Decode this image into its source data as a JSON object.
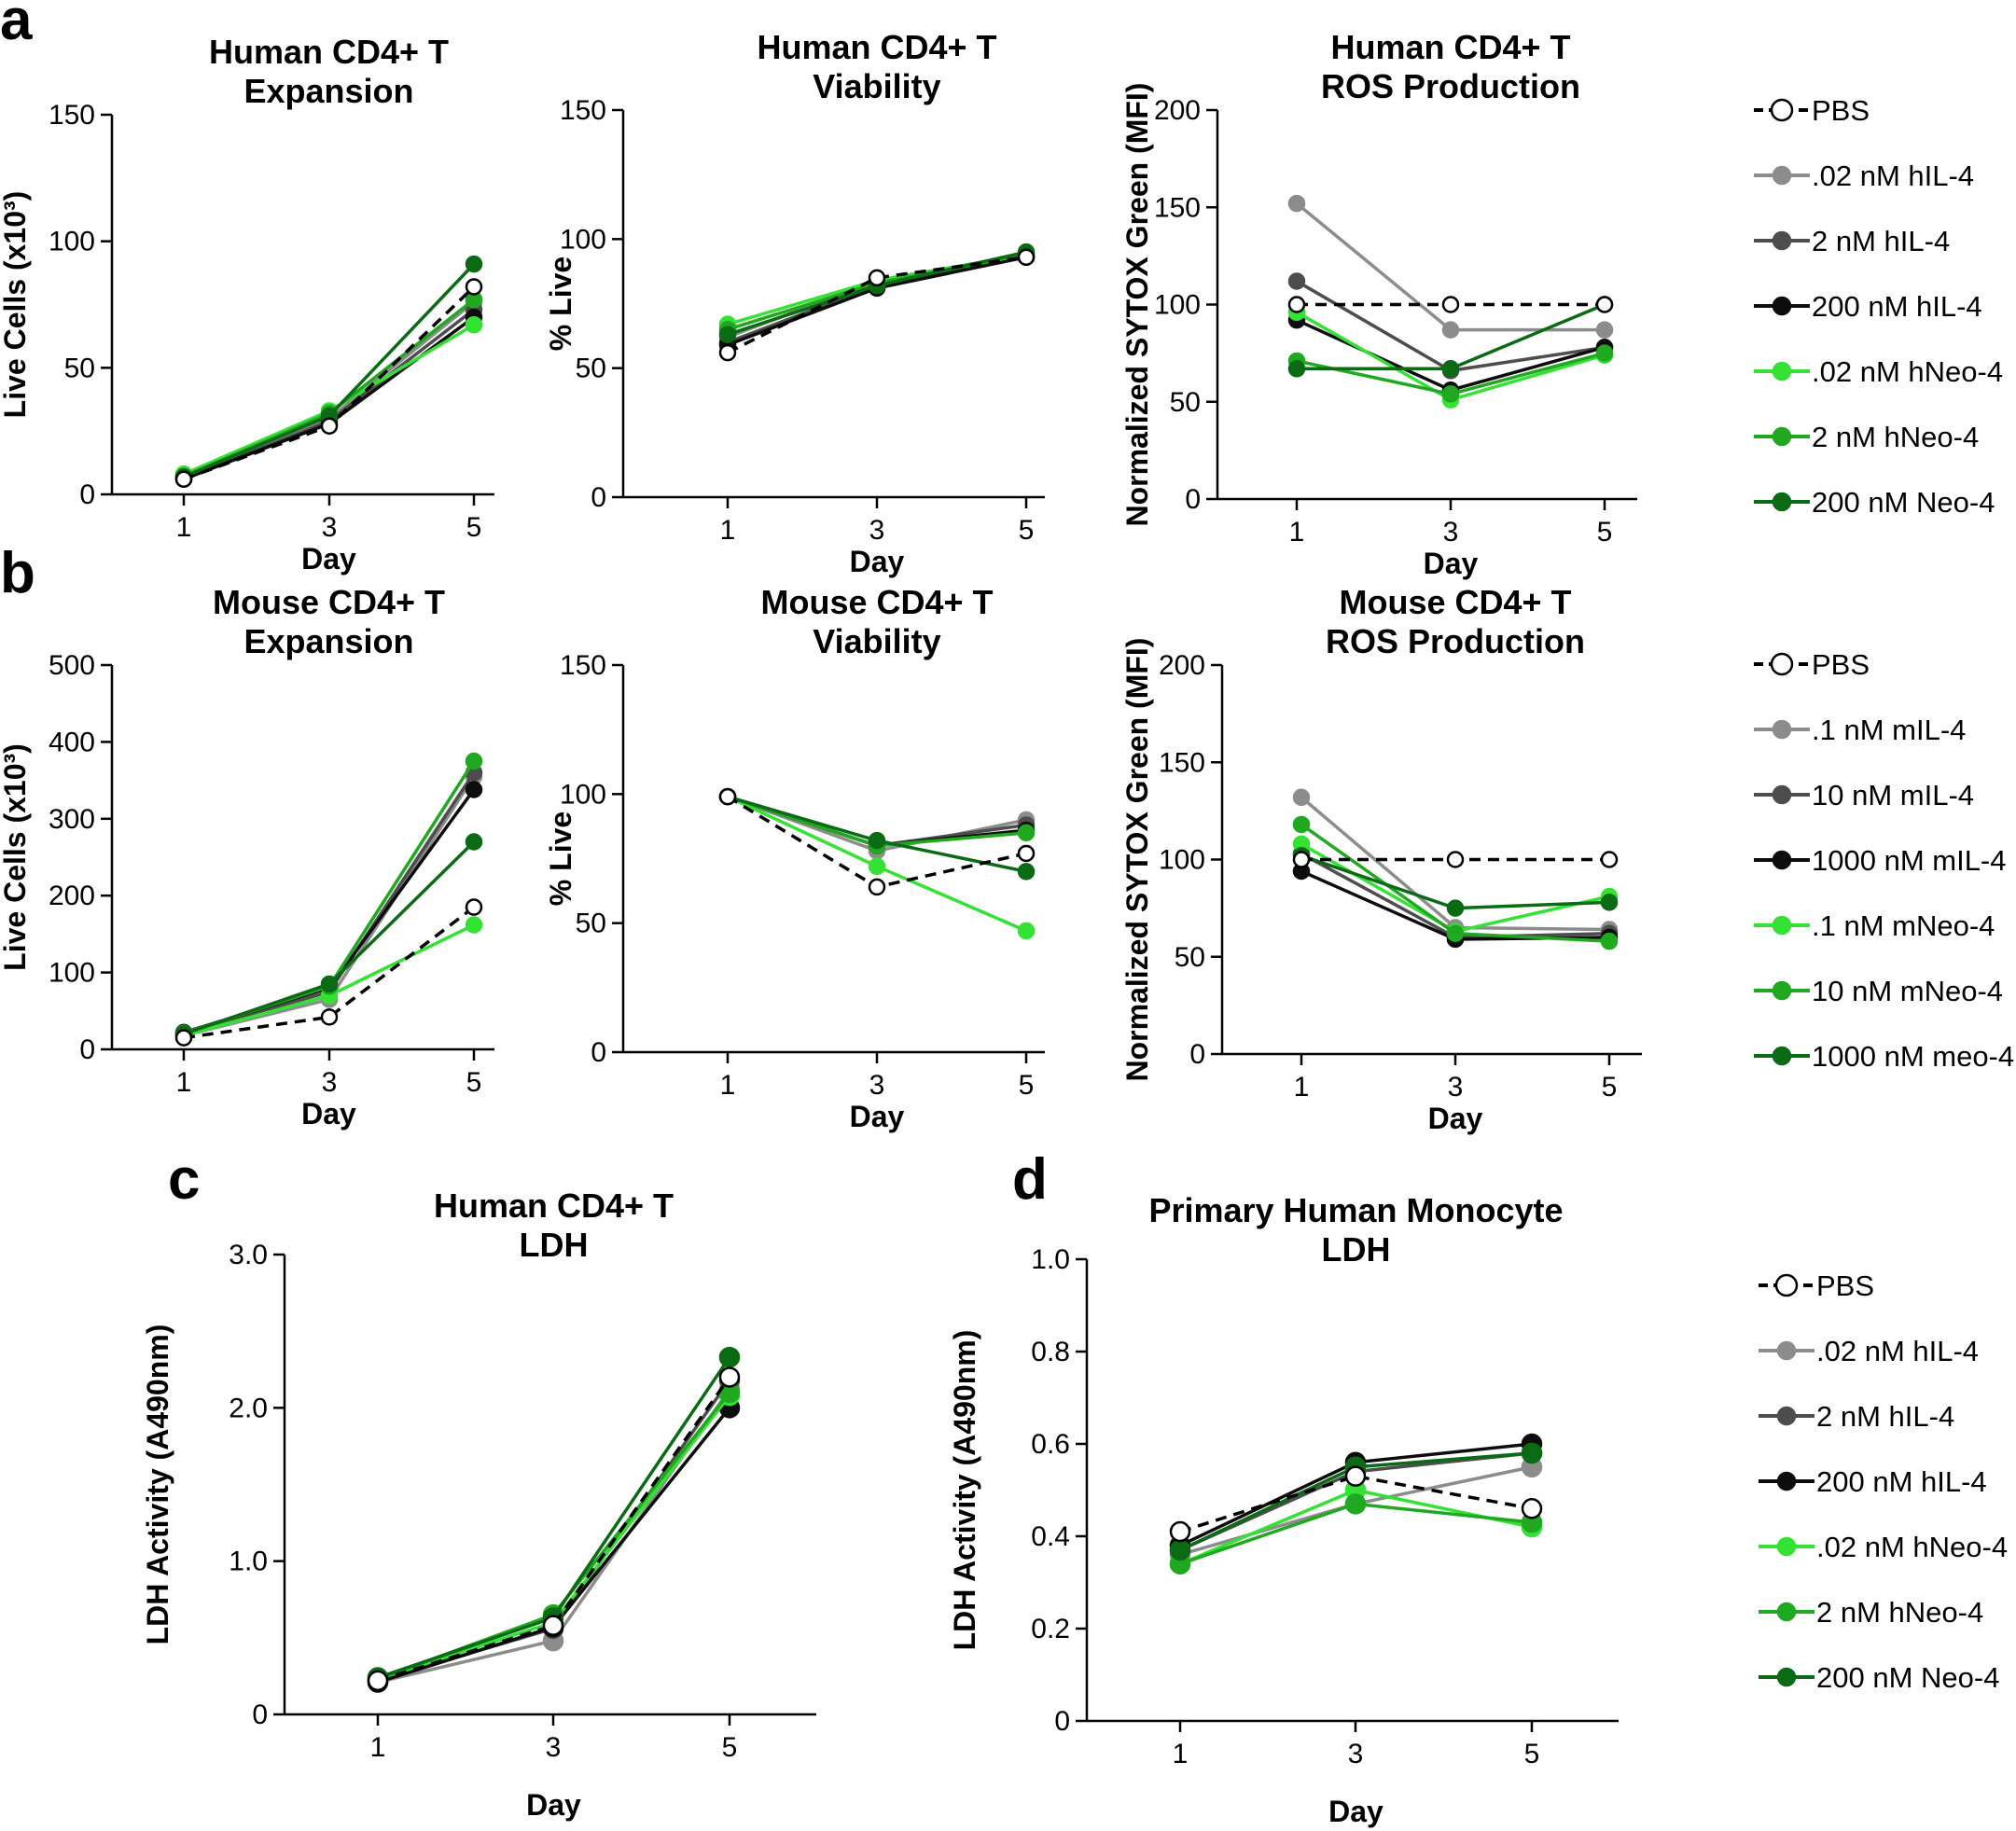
{
  "colors": {
    "pbs": "#000000",
    "low_il4": "#8c8c8c",
    "mid_il4": "#4d4d4d",
    "high_il4": "#0d0d0d",
    "low_neo4": "#33e233",
    "mid_neo4": "#20a820",
    "high_neo4": "#0b6b14"
  },
  "panel_labels": {
    "a": "a",
    "b": "b",
    "c": "c",
    "d": "d"
  },
  "legends": {
    "a": [
      ".02 nM hIL-4",
      "2 nM hIL-4",
      "200 nM hIL-4",
      ".02 nM hNeo-4",
      "2 nM hNeo-4",
      "200 nM Neo-4"
    ],
    "b": [
      ".1 nM mIL-4",
      "10 nM mIL-4",
      "1000 nM mIL-4",
      ".1 nM mNeo-4",
      "10 nM mNeo-4",
      "1000 nM meo-4"
    ],
    "d": [
      ".02 nM hIL-4",
      "2 nM hIL-4",
      "200 nM hIL-4",
      ".02 nM hNeo-4",
      "2 nM hNeo-4",
      "200 nM Neo-4"
    ],
    "pbs_label": "PBS"
  },
  "chart_data": [
    {
      "id": "a1",
      "type": "line",
      "title": [
        "Human CD4+ T",
        "Expansion"
      ],
      "xlabel": "Day",
      "ylabel": "Live Cells (x10³)",
      "categories": [
        "1",
        "3",
        "5"
      ],
      "ylim": [
        0,
        150
      ],
      "yticks": [
        "0",
        "50",
        "100",
        "150"
      ],
      "series": [
        {
          "name": "PBS",
          "values": [
            6,
            27,
            82
          ]
        },
        {
          "name": ".02 nM hIL-4",
          "values": [
            7,
            30,
            76
          ]
        },
        {
          "name": "2 nM hIL-4",
          "values": [
            6,
            29,
            73
          ]
        },
        {
          "name": "200 nM hIL-4",
          "values": [
            6,
            28,
            70
          ]
        },
        {
          "name": ".02 nM hNeo-4",
          "values": [
            8,
            33,
            67
          ]
        },
        {
          "name": "2 nM hNeo-4",
          "values": [
            7,
            32,
            77
          ]
        },
        {
          "name": "200 nM Neo-4",
          "values": [
            7,
            31,
            91
          ]
        }
      ]
    },
    {
      "id": "a2",
      "type": "line",
      "title": [
        "Human CD4+ T",
        "Viability"
      ],
      "xlabel": "Day",
      "ylabel": "% Live",
      "categories": [
        "1",
        "3",
        "5"
      ],
      "ylim": [
        0,
        150
      ],
      "yticks": [
        "0",
        "50",
        "100",
        "150"
      ],
      "series": [
        {
          "name": "PBS",
          "values": [
            56,
            85,
            93
          ]
        },
        {
          "name": ".02 nM hIL-4",
          "values": [
            62,
            84,
            94
          ]
        },
        {
          "name": "2 nM hIL-4",
          "values": [
            60,
            82,
            93
          ]
        },
        {
          "name": "200 nM hIL-4",
          "values": [
            59,
            81,
            93
          ]
        },
        {
          "name": ".02 nM hNeo-4",
          "values": [
            67,
            84,
            94
          ]
        },
        {
          "name": "2 nM hNeo-4",
          "values": [
            65,
            83,
            94
          ]
        },
        {
          "name": "200 nM Neo-4",
          "values": [
            63,
            82,
            95
          ]
        }
      ]
    },
    {
      "id": "a3",
      "type": "line",
      "title": [
        "Human CD4+ T",
        "ROS Production"
      ],
      "xlabel": "Day",
      "ylabel": "Normalized  SYTOX Green (MFI)",
      "categories": [
        "1",
        "3",
        "5"
      ],
      "ylim": [
        0,
        200
      ],
      "yticks": [
        "0",
        "50",
        "100",
        "150",
        "200"
      ],
      "series": [
        {
          "name": "PBS",
          "values": [
            100,
            100,
            100
          ]
        },
        {
          "name": ".02 nM hIL-4",
          "values": [
            152,
            87,
            87
          ]
        },
        {
          "name": "2 nM hIL-4",
          "values": [
            112,
            66,
            78
          ]
        },
        {
          "name": "200 nM hIL-4",
          "values": [
            92,
            56,
            78
          ]
        },
        {
          "name": ".02 nM hNeo-4",
          "values": [
            96,
            51,
            74
          ]
        },
        {
          "name": "2 nM hNeo-4",
          "values": [
            71,
            54,
            75
          ]
        },
        {
          "name": "200 nM Neo-4",
          "values": [
            67,
            67,
            100
          ]
        }
      ]
    },
    {
      "id": "b1",
      "type": "line",
      "title": [
        "Mouse CD4+ T",
        "Expansion"
      ],
      "xlabel": "Day",
      "ylabel": "Live Cells (x10³)",
      "categories": [
        "1",
        "3",
        "5"
      ],
      "ylim": [
        0,
        500
      ],
      "yticks": [
        "0",
        "100",
        "200",
        "300",
        "400",
        "500"
      ],
      "series": [
        {
          "name": "PBS",
          "values": [
            15,
            42,
            185
          ]
        },
        {
          "name": ".1 nM mIL-4",
          "values": [
            18,
            65,
            355
          ]
        },
        {
          "name": "10 nM mIL-4",
          "values": [
            20,
            75,
            360
          ]
        },
        {
          "name": "1000 nM mIL-4",
          "values": [
            22,
            80,
            338
          ]
        },
        {
          "name": ".1 nM mNeo-4",
          "values": [
            18,
            70,
            162
          ]
        },
        {
          "name": "10 nM mNeo-4",
          "values": [
            21,
            82,
            375
          ]
        },
        {
          "name": "1000 nM meo-4",
          "values": [
            20,
            85,
            270
          ]
        }
      ]
    },
    {
      "id": "b2",
      "type": "line",
      "title": [
        "Mouse CD4+ T",
        "Viability"
      ],
      "xlabel": "Day",
      "ylabel": "% Live",
      "categories": [
        "1",
        "3",
        "5"
      ],
      "ylim": [
        0,
        150
      ],
      "yticks": [
        "0",
        "50",
        "100",
        "150"
      ],
      "series": [
        {
          "name": "PBS",
          "values": [
            99,
            64,
            77
          ]
        },
        {
          "name": ".1 nM mIL-4",
          "values": [
            99,
            78,
            90
          ]
        },
        {
          "name": "10 nM mIL-4",
          "values": [
            99,
            80,
            88
          ]
        },
        {
          "name": "1000 nM mIL-4",
          "values": [
            99,
            80,
            86
          ]
        },
        {
          "name": ".1 nM mNeo-4",
          "values": [
            99,
            72,
            47
          ]
        },
        {
          "name": "10 nM mNeo-4",
          "values": [
            99,
            80,
            85
          ]
        },
        {
          "name": "1000 nM meo-4",
          "values": [
            99,
            82,
            70
          ]
        }
      ]
    },
    {
      "id": "b3",
      "type": "line",
      "title": [
        "Mouse CD4+ T",
        "ROS Production"
      ],
      "xlabel": "Day",
      "ylabel": "Normalized  SYTOX Green (MFI)",
      "categories": [
        "1",
        "3",
        "5"
      ],
      "ylim": [
        0,
        200
      ],
      "yticks": [
        "0",
        "50",
        "100",
        "150",
        "200"
      ],
      "series": [
        {
          "name": "PBS",
          "values": [
            100,
            100,
            100
          ]
        },
        {
          "name": ".1 nM mIL-4",
          "values": [
            132,
            65,
            64
          ]
        },
        {
          "name": "10 nM mIL-4",
          "values": [
            103,
            60,
            62
          ]
        },
        {
          "name": "1000 nM mIL-4",
          "values": [
            94,
            59,
            60
          ]
        },
        {
          "name": ".1 nM mNeo-4",
          "values": [
            108,
            63,
            81
          ]
        },
        {
          "name": "10 nM mNeo-4",
          "values": [
            118,
            62,
            58
          ]
        },
        {
          "name": "1000 nM meo-4",
          "values": [
            102,
            75,
            78
          ]
        }
      ]
    },
    {
      "id": "c",
      "type": "line",
      "title": [
        "Human CD4+ T",
        "LDH"
      ],
      "xlabel": "Day",
      "ylabel": "LDH Activity (A490nm)",
      "categories": [
        "1",
        "3",
        "5"
      ],
      "ylim": [
        0,
        3.0
      ],
      "yticks": [
        "0",
        "1.0",
        "2.0",
        "3.0"
      ],
      "series": [
        {
          "name": "PBS",
          "values": [
            0.22,
            0.58,
            2.2
          ]
        },
        {
          "name": ".02 nM hIL-4",
          "values": [
            0.21,
            0.48,
            2.12
          ]
        },
        {
          "name": "2 nM hIL-4",
          "values": [
            0.22,
            0.56,
            2.18
          ]
        },
        {
          "name": "200 nM hIL-4",
          "values": [
            0.21,
            0.57,
            2.0
          ]
        },
        {
          "name": ".02 nM hNeo-4",
          "values": [
            0.23,
            0.6,
            2.08
          ]
        },
        {
          "name": "2 nM hNeo-4",
          "values": [
            0.23,
            0.65,
            2.1
          ]
        },
        {
          "name": "200 nM Neo-4",
          "values": [
            0.24,
            0.63,
            2.33
          ]
        }
      ]
    },
    {
      "id": "d",
      "type": "line",
      "title": [
        "Primary Human Monocyte",
        "LDH"
      ],
      "xlabel": "Day",
      "ylabel": "LDH Activity (A490nm)",
      "categories": [
        "1",
        "3",
        "5"
      ],
      "ylim": [
        0,
        1.0
      ],
      "yticks": [
        "0",
        "0.2",
        "0.4",
        "0.6",
        "0.8",
        "1.0"
      ],
      "series": [
        {
          "name": "PBS",
          "values": [
            0.41,
            0.53,
            0.46
          ]
        },
        {
          "name": ".02 nM hIL-4",
          "values": [
            0.36,
            0.47,
            0.55
          ]
        },
        {
          "name": "2 nM hIL-4",
          "values": [
            0.37,
            0.54,
            0.58
          ]
        },
        {
          "name": "200 nM hIL-4",
          "values": [
            0.38,
            0.56,
            0.6
          ]
        },
        {
          "name": ".02 nM hNeo-4",
          "values": [
            0.34,
            0.5,
            0.42
          ]
        },
        {
          "name": "2 nM hNeo-4",
          "values": [
            0.34,
            0.47,
            0.43
          ]
        },
        {
          "name": "200 nM Neo-4",
          "values": [
            0.37,
            0.55,
            0.58
          ]
        }
      ]
    }
  ]
}
